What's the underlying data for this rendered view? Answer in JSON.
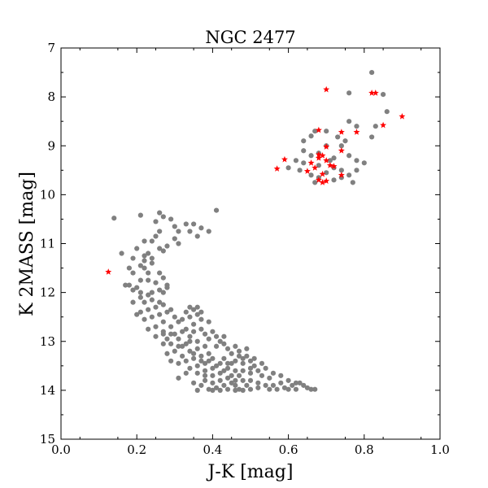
{
  "chart_data": {
    "type": "scatter",
    "title": "NGC 2477",
    "xlabel": "J-K [mag]",
    "ylabel": "K 2MASS [mag]",
    "xlim": [
      0.0,
      1.0
    ],
    "ylim": [
      15,
      7
    ],
    "y_inverted": true,
    "grid": false,
    "legend": "none",
    "xticks": [
      "0.0",
      "0.2",
      "0.4",
      "0.6",
      "0.8",
      "1.0"
    ],
    "yticks": [
      "7",
      "8",
      "9",
      "10",
      "11",
      "12",
      "13",
      "14",
      "15"
    ],
    "series": [
      {
        "marker": "circle",
        "color": "#808080",
        "points": [
          [
            0.14,
            10.48
          ],
          [
            0.21,
            10.42
          ],
          [
            0.26,
            10.37
          ],
          [
            0.41,
            10.32
          ],
          [
            0.27,
            10.45
          ],
          [
            0.25,
            10.55
          ],
          [
            0.33,
            10.6
          ],
          [
            0.35,
            10.6
          ],
          [
            0.37,
            10.68
          ],
          [
            0.39,
            10.75
          ],
          [
            0.34,
            10.75
          ],
          [
            0.36,
            10.85
          ],
          [
            0.3,
            10.65
          ],
          [
            0.31,
            10.75
          ],
          [
            0.29,
            10.5
          ],
          [
            0.26,
            10.75
          ],
          [
            0.25,
            10.85
          ],
          [
            0.24,
            10.95
          ],
          [
            0.22,
            10.95
          ],
          [
            0.2,
            11.1
          ],
          [
            0.19,
            11.3
          ],
          [
            0.22,
            11.25
          ],
          [
            0.23,
            11.2
          ],
          [
            0.27,
            11.15
          ],
          [
            0.3,
            10.9
          ],
          [
            0.31,
            11.0
          ],
          [
            0.16,
            11.2
          ],
          [
            0.18,
            11.5
          ],
          [
            0.19,
            11.6
          ],
          [
            0.21,
            11.45
          ],
          [
            0.22,
            11.5
          ],
          [
            0.24,
            11.4
          ],
          [
            0.23,
            11.6
          ],
          [
            0.17,
            11.85
          ],
          [
            0.18,
            11.85
          ],
          [
            0.2,
            11.9
          ],
          [
            0.21,
            11.75
          ],
          [
            0.23,
            11.75
          ],
          [
            0.26,
            11.6
          ],
          [
            0.25,
            11.8
          ],
          [
            0.24,
            12.0
          ],
          [
            0.26,
            11.95
          ],
          [
            0.27,
            12.0
          ],
          [
            0.28,
            11.9
          ],
          [
            0.19,
            12.2
          ],
          [
            0.21,
            12.1
          ],
          [
            0.22,
            12.2
          ],
          [
            0.24,
            12.15
          ],
          [
            0.26,
            12.2
          ],
          [
            0.27,
            12.25
          ],
          [
            0.25,
            12.3
          ],
          [
            0.23,
            12.35
          ],
          [
            0.21,
            12.4
          ],
          [
            0.2,
            12.45
          ],
          [
            0.22,
            12.55
          ],
          [
            0.24,
            12.5
          ],
          [
            0.26,
            12.45
          ],
          [
            0.28,
            12.4
          ],
          [
            0.29,
            12.35
          ],
          [
            0.3,
            12.5
          ],
          [
            0.27,
            12.6
          ],
          [
            0.25,
            12.7
          ],
          [
            0.23,
            12.75
          ],
          [
            0.25,
            12.9
          ],
          [
            0.27,
            12.8
          ],
          [
            0.29,
            12.7
          ],
          [
            0.31,
            12.6
          ],
          [
            0.33,
            12.4
          ],
          [
            0.32,
            12.55
          ],
          [
            0.34,
            12.5
          ],
          [
            0.35,
            12.35
          ],
          [
            0.35,
            12.65
          ],
          [
            0.36,
            12.45
          ],
          [
            0.37,
            12.55
          ],
          [
            0.33,
            12.75
          ],
          [
            0.3,
            12.85
          ],
          [
            0.28,
            12.95
          ],
          [
            0.27,
            13.05
          ],
          [
            0.29,
            13.05
          ],
          [
            0.31,
            12.95
          ],
          [
            0.32,
            13.1
          ],
          [
            0.34,
            12.9
          ],
          [
            0.35,
            12.8
          ],
          [
            0.36,
            13.0
          ],
          [
            0.37,
            12.75
          ],
          [
            0.38,
            12.85
          ],
          [
            0.39,
            12.95
          ],
          [
            0.4,
            12.8
          ],
          [
            0.38,
            13.1
          ],
          [
            0.36,
            13.15
          ],
          [
            0.34,
            13.2
          ],
          [
            0.32,
            13.3
          ],
          [
            0.3,
            13.2
          ],
          [
            0.28,
            13.25
          ],
          [
            0.29,
            13.4
          ],
          [
            0.31,
            13.45
          ],
          [
            0.33,
            13.4
          ],
          [
            0.35,
            13.35
          ],
          [
            0.37,
            13.3
          ],
          [
            0.39,
            13.25
          ],
          [
            0.41,
            13.1
          ],
          [
            0.42,
            13.0
          ],
          [
            0.43,
            12.9
          ],
          [
            0.44,
            13.15
          ],
          [
            0.4,
            13.35
          ],
          [
            0.38,
            13.45
          ],
          [
            0.36,
            13.5
          ],
          [
            0.34,
            13.55
          ],
          [
            0.36,
            13.65
          ],
          [
            0.38,
            13.6
          ],
          [
            0.4,
            13.55
          ],
          [
            0.42,
            13.45
          ],
          [
            0.43,
            13.35
          ],
          [
            0.45,
            13.25
          ],
          [
            0.46,
            13.1
          ],
          [
            0.47,
            13.3
          ],
          [
            0.45,
            13.45
          ],
          [
            0.44,
            13.55
          ],
          [
            0.42,
            13.65
          ],
          [
            0.4,
            13.7
          ],
          [
            0.38,
            13.8
          ],
          [
            0.4,
            13.85
          ],
          [
            0.42,
            13.8
          ],
          [
            0.44,
            13.75
          ],
          [
            0.46,
            13.6
          ],
          [
            0.48,
            13.45
          ],
          [
            0.49,
            13.3
          ],
          [
            0.5,
            13.4
          ],
          [
            0.48,
            13.6
          ],
          [
            0.47,
            13.7
          ],
          [
            0.45,
            13.85
          ],
          [
            0.43,
            13.9
          ],
          [
            0.41,
            13.95
          ],
          [
            0.44,
            13.98
          ],
          [
            0.46,
            13.9
          ],
          [
            0.48,
            13.8
          ],
          [
            0.5,
            13.65
          ],
          [
            0.51,
            13.5
          ],
          [
            0.52,
            13.6
          ],
          [
            0.5,
            13.8
          ],
          [
            0.49,
            13.9
          ],
          [
            0.47,
            13.98
          ],
          [
            0.5,
            13.98
          ],
          [
            0.52,
            13.85
          ],
          [
            0.53,
            13.7
          ],
          [
            0.55,
            13.75
          ],
          [
            0.54,
            13.9
          ],
          [
            0.52,
            13.95
          ],
          [
            0.56,
            13.9
          ],
          [
            0.58,
            13.85
          ],
          [
            0.57,
            13.98
          ],
          [
            0.55,
            13.98
          ],
          [
            0.59,
            13.95
          ],
          [
            0.61,
            13.9
          ],
          [
            0.6,
            13.98
          ],
          [
            0.62,
            13.98
          ],
          [
            0.64,
            13.9
          ],
          [
            0.65,
            13.95
          ],
          [
            0.67,
            13.98
          ],
          [
            0.63,
            13.85
          ],
          [
            0.31,
            13.75
          ],
          [
            0.33,
            13.65
          ],
          [
            0.35,
            13.85
          ],
          [
            0.37,
            13.9
          ],
          [
            0.39,
            13.98
          ],
          [
            0.36,
            14.0
          ],
          [
            0.39,
            12.6
          ],
          [
            0.37,
            12.4
          ],
          [
            0.36,
            12.3
          ],
          [
            0.34,
            12.3
          ],
          [
            0.41,
            12.9
          ],
          [
            0.43,
            13.05
          ],
          [
            0.47,
            13.2
          ],
          [
            0.49,
            13.15
          ],
          [
            0.51,
            13.35
          ],
          [
            0.53,
            13.45
          ],
          [
            0.54,
            13.55
          ],
          [
            0.56,
            13.65
          ],
          [
            0.58,
            13.7
          ],
          [
            0.6,
            13.8
          ],
          [
            0.62,
            13.85
          ],
          [
            0.66,
            13.98
          ],
          [
            0.21,
            12.0
          ],
          [
            0.23,
            12.05
          ],
          [
            0.19,
            11.95
          ],
          [
            0.28,
            11.85
          ],
          [
            0.27,
            11.7
          ],
          [
            0.24,
            11.3
          ],
          [
            0.22,
            11.35
          ],
          [
            0.26,
            11.1
          ],
          [
            0.28,
            11.05
          ],
          [
            0.45,
            13.7
          ],
          [
            0.43,
            13.6
          ],
          [
            0.41,
            13.5
          ],
          [
            0.39,
            13.4
          ],
          [
            0.37,
            13.4
          ],
          [
            0.35,
            13.25
          ],
          [
            0.33,
            13.05
          ],
          [
            0.31,
            13.1
          ],
          [
            0.29,
            12.85
          ],
          [
            0.27,
            12.85
          ],
          [
            0.32,
            12.8
          ],
          [
            0.34,
            13.0
          ],
          [
            0.38,
            13.7
          ],
          [
            0.4,
            14.0
          ],
          [
            0.42,
            14.0
          ],
          [
            0.46,
            14.0
          ],
          [
            0.48,
            14.0
          ],
          [
            0.44,
            13.45
          ],
          [
            0.46,
            13.4
          ],
          [
            0.48,
            13.35
          ],
          [
            0.46,
            13.8
          ],
          [
            0.5,
            13.55
          ],
          [
            0.82,
            7.5
          ],
          [
            0.85,
            7.95
          ],
          [
            0.76,
            7.92
          ],
          [
            0.86,
            8.3
          ],
          [
            0.76,
            8.5
          ],
          [
            0.83,
            8.6
          ],
          [
            0.78,
            8.6
          ],
          [
            0.7,
            8.7
          ],
          [
            0.67,
            8.7
          ],
          [
            0.64,
            8.9
          ],
          [
            0.66,
            8.8
          ],
          [
            0.73,
            8.82
          ],
          [
            0.75,
            8.9
          ],
          [
            0.7,
            9.0
          ],
          [
            0.74,
            9.0
          ],
          [
            0.82,
            8.82
          ],
          [
            0.64,
            9.1
          ],
          [
            0.66,
            9.2
          ],
          [
            0.68,
            9.15
          ],
          [
            0.72,
            9.25
          ],
          [
            0.76,
            9.2
          ],
          [
            0.78,
            9.3
          ],
          [
            0.8,
            9.35
          ],
          [
            0.62,
            9.3
          ],
          [
            0.64,
            9.35
          ],
          [
            0.68,
            9.4
          ],
          [
            0.72,
            9.45
          ],
          [
            0.74,
            9.5
          ],
          [
            0.76,
            9.6
          ],
          [
            0.78,
            9.5
          ],
          [
            0.63,
            9.5
          ],
          [
            0.6,
            9.45
          ],
          [
            0.66,
            9.6
          ],
          [
            0.68,
            9.65
          ],
          [
            0.7,
            9.55
          ],
          [
            0.72,
            9.7
          ],
          [
            0.74,
            9.65
          ],
          [
            0.77,
            9.75
          ],
          [
            0.67,
            9.75
          ],
          [
            0.71,
            9.3
          ]
        ]
      },
      {
        "marker": "star",
        "color": "#ff0000",
        "points": [
          [
            0.125,
            11.58
          ],
          [
            0.7,
            7.85
          ],
          [
            0.82,
            7.92
          ],
          [
            0.83,
            7.92
          ],
          [
            0.9,
            8.4
          ],
          [
            0.85,
            8.58
          ],
          [
            0.68,
            8.68
          ],
          [
            0.74,
            8.72
          ],
          [
            0.78,
            8.72
          ],
          [
            0.7,
            9.02
          ],
          [
            0.74,
            9.1
          ],
          [
            0.68,
            9.18
          ],
          [
            0.69,
            9.2
          ],
          [
            0.68,
            9.25
          ],
          [
            0.59,
            9.28
          ],
          [
            0.7,
            9.3
          ],
          [
            0.66,
            9.35
          ],
          [
            0.71,
            9.4
          ],
          [
            0.67,
            9.45
          ],
          [
            0.57,
            9.47
          ],
          [
            0.65,
            9.52
          ],
          [
            0.69,
            9.58
          ],
          [
            0.74,
            9.6
          ],
          [
            0.68,
            9.7
          ],
          [
            0.7,
            9.72
          ],
          [
            0.69,
            9.75
          ],
          [
            0.72,
            9.42
          ]
        ]
      }
    ]
  }
}
